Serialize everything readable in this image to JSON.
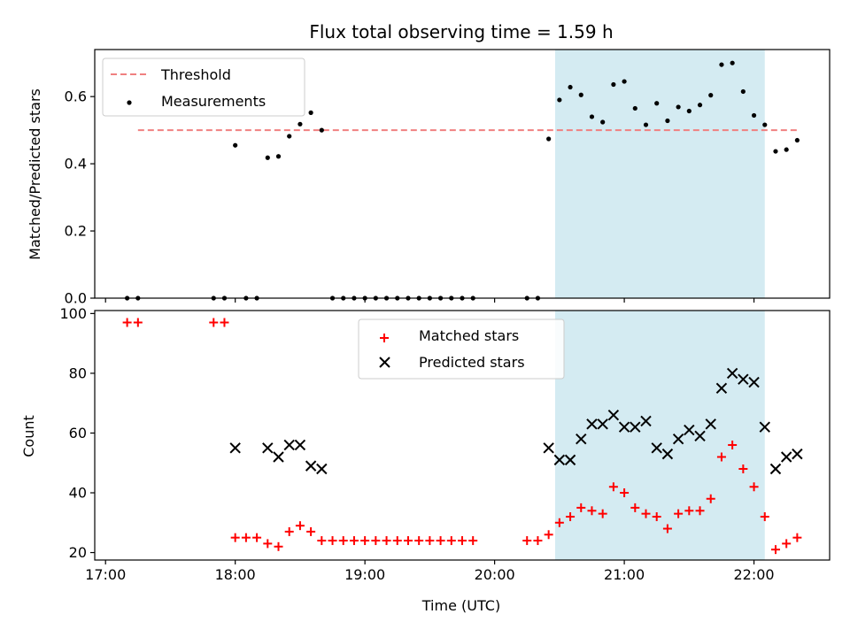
{
  "chart_data": [
    {
      "type": "scatter",
      "title": "Flux total observing time = 1.59 h",
      "xlabel": "",
      "ylabel": "Matched/Predicted stars",
      "xlim": [
        "16:55",
        "22:35"
      ],
      "ylim": [
        0,
        0.74
      ],
      "yticks": [
        "0.0",
        "0.2",
        "0.4",
        "0.6"
      ],
      "grid": false,
      "legend_position": "top-left",
      "shaded_interval": [
        "20:28",
        "22:05"
      ],
      "shade_color": "#add8e6",
      "threshold": {
        "name": "Threshold",
        "value": 0.5,
        "x_range": [
          "17:15",
          "22:20"
        ],
        "color": "#f08080",
        "style": "dashed"
      },
      "series": [
        {
          "name": "Measurements",
          "color": "#000000",
          "marker": "dot",
          "points": [
            [
              "17:10",
              0.0
            ],
            [
              "17:15",
              0.0
            ],
            [
              "17:50",
              0.0
            ],
            [
              "17:55",
              0.0
            ],
            [
              "18:00",
              0.455
            ],
            [
              "18:05",
              0.0
            ],
            [
              "18:10",
              0.0
            ],
            [
              "18:15",
              0.418
            ],
            [
              "18:20",
              0.422
            ],
            [
              "18:25",
              0.482
            ],
            [
              "18:30",
              0.518
            ],
            [
              "18:35",
              0.552
            ],
            [
              "18:40",
              0.5
            ],
            [
              "18:45",
              0.0
            ],
            [
              "18:50",
              0.0
            ],
            [
              "18:55",
              0.0
            ],
            [
              "19:00",
              0.0
            ],
            [
              "19:05",
              0.0
            ],
            [
              "19:10",
              0.0
            ],
            [
              "19:15",
              0.0
            ],
            [
              "19:20",
              0.0
            ],
            [
              "19:25",
              0.0
            ],
            [
              "19:30",
              0.0
            ],
            [
              "19:35",
              0.0
            ],
            [
              "19:40",
              0.0
            ],
            [
              "19:45",
              0.0
            ],
            [
              "19:50",
              0.0
            ],
            [
              "20:15",
              0.0
            ],
            [
              "20:20",
              0.0
            ],
            [
              "20:25",
              0.474
            ],
            [
              "20:30",
              0.59
            ],
            [
              "20:35",
              0.628
            ],
            [
              "20:40",
              0.605
            ],
            [
              "20:45",
              0.54
            ],
            [
              "20:50",
              0.524
            ],
            [
              "20:55",
              0.636
            ],
            [
              "21:00",
              0.645
            ],
            [
              "21:05",
              0.565
            ],
            [
              "21:10",
              0.516
            ],
            [
              "21:15",
              0.58
            ],
            [
              "21:20",
              0.528
            ],
            [
              "21:25",
              0.569
            ],
            [
              "21:30",
              0.557
            ],
            [
              "21:35",
              0.575
            ],
            [
              "21:40",
              0.604
            ],
            [
              "21:45",
              0.695
            ],
            [
              "21:50",
              0.7
            ],
            [
              "21:55",
              0.615
            ],
            [
              "22:00",
              0.544
            ],
            [
              "22:05",
              0.516
            ],
            [
              "22:10",
              0.437
            ],
            [
              "22:15",
              0.442
            ],
            [
              "22:20",
              0.47
            ]
          ]
        }
      ]
    },
    {
      "type": "scatter",
      "title": "",
      "xlabel": "Time (UTC)",
      "ylabel": "Count",
      "xlim": [
        "16:55",
        "22:35"
      ],
      "ylim": [
        17.5,
        101
      ],
      "xticks": [
        "17:00",
        "18:00",
        "19:00",
        "20:00",
        "21:00",
        "22:00"
      ],
      "yticks": [
        "20",
        "40",
        "60",
        "80",
        "100"
      ],
      "grid": false,
      "legend_position": "top-center",
      "shaded_interval": [
        "20:28",
        "22:05"
      ],
      "shade_color": "#add8e6",
      "series": [
        {
          "name": "Matched stars",
          "color": "#ff0000",
          "marker": "plus",
          "points": [
            [
              "17:10",
              97
            ],
            [
              "17:15",
              97
            ],
            [
              "17:50",
              97
            ],
            [
              "17:55",
              97
            ],
            [
              "18:00",
              25
            ],
            [
              "18:05",
              25
            ],
            [
              "18:10",
              25
            ],
            [
              "18:15",
              23
            ],
            [
              "18:20",
              22
            ],
            [
              "18:25",
              27
            ],
            [
              "18:30",
              29
            ],
            [
              "18:35",
              27
            ],
            [
              "18:40",
              24
            ],
            [
              "18:45",
              24
            ],
            [
              "18:50",
              24
            ],
            [
              "18:55",
              24
            ],
            [
              "19:00",
              24
            ],
            [
              "19:05",
              24
            ],
            [
              "19:10",
              24
            ],
            [
              "19:15",
              24
            ],
            [
              "19:20",
              24
            ],
            [
              "19:25",
              24
            ],
            [
              "19:30",
              24
            ],
            [
              "19:35",
              24
            ],
            [
              "19:40",
              24
            ],
            [
              "19:45",
              24
            ],
            [
              "19:50",
              24
            ],
            [
              "20:15",
              24
            ],
            [
              "20:20",
              24
            ],
            [
              "20:25",
              26
            ],
            [
              "20:30",
              30
            ],
            [
              "20:35",
              32
            ],
            [
              "20:40",
              35
            ],
            [
              "20:45",
              34
            ],
            [
              "20:50",
              33
            ],
            [
              "20:55",
              42
            ],
            [
              "21:00",
              40
            ],
            [
              "21:05",
              35
            ],
            [
              "21:10",
              33
            ],
            [
              "21:15",
              32
            ],
            [
              "21:20",
              28
            ],
            [
              "21:25",
              33
            ],
            [
              "21:30",
              34
            ],
            [
              "21:35",
              34
            ],
            [
              "21:40",
              38
            ],
            [
              "21:45",
              52
            ],
            [
              "21:50",
              56
            ],
            [
              "21:55",
              48
            ],
            [
              "22:00",
              42
            ],
            [
              "22:05",
              32
            ],
            [
              "22:10",
              21
            ],
            [
              "22:15",
              23
            ],
            [
              "22:20",
              25
            ]
          ]
        },
        {
          "name": "Predicted stars",
          "color": "#000000",
          "marker": "cross",
          "points": [
            [
              "18:00",
              55
            ],
            [
              "18:15",
              55
            ],
            [
              "18:20",
              52
            ],
            [
              "18:25",
              56
            ],
            [
              "18:30",
              56
            ],
            [
              "18:35",
              49
            ],
            [
              "18:40",
              48
            ],
            [
              "20:25",
              55
            ],
            [
              "20:30",
              51
            ],
            [
              "20:35",
              51
            ],
            [
              "20:40",
              58
            ],
            [
              "20:45",
              63
            ],
            [
              "20:50",
              63
            ],
            [
              "20:55",
              66
            ],
            [
              "21:00",
              62
            ],
            [
              "21:05",
              62
            ],
            [
              "21:10",
              64
            ],
            [
              "21:15",
              55
            ],
            [
              "21:20",
              53
            ],
            [
              "21:25",
              58
            ],
            [
              "21:30",
              61
            ],
            [
              "21:35",
              59
            ],
            [
              "21:40",
              63
            ],
            [
              "21:45",
              75
            ],
            [
              "21:50",
              80
            ],
            [
              "21:55",
              78
            ],
            [
              "22:00",
              77
            ],
            [
              "22:05",
              62
            ],
            [
              "22:10",
              48
            ],
            [
              "22:15",
              52
            ],
            [
              "22:20",
              53
            ]
          ]
        }
      ]
    }
  ]
}
